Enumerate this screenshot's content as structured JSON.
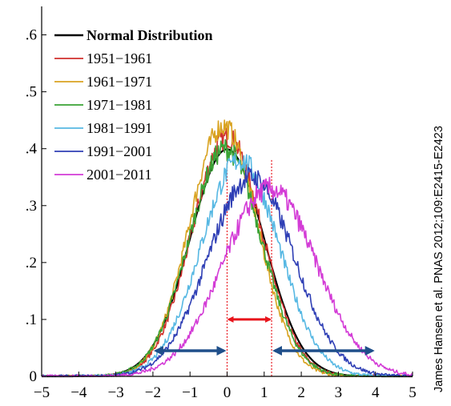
{
  "chart_data": {
    "type": "line",
    "xlim": [
      -5,
      5
    ],
    "ylim": [
      0,
      0.65
    ],
    "x_ticks": [
      {
        "value": -5,
        "label": "−5"
      },
      {
        "value": -4,
        "label": "−4"
      },
      {
        "value": -3,
        "label": "−3"
      },
      {
        "value": -2,
        "label": "−2"
      },
      {
        "value": -1,
        "label": "−1"
      },
      {
        "value": 0,
        "label": "0"
      },
      {
        "value": 1,
        "label": "1"
      },
      {
        "value": 2,
        "label": "2"
      },
      {
        "value": 3,
        "label": "3"
      },
      {
        "value": 4,
        "label": "4"
      },
      {
        "value": 5,
        "label": "5"
      }
    ],
    "y_ticks": [
      {
        "value": 0,
        "label": "0"
      },
      {
        "value": 0.1,
        "label": ".1"
      },
      {
        "value": 0.2,
        "label": ".2"
      },
      {
        "value": 0.3,
        "label": ".3"
      },
      {
        "value": 0.4,
        "label": ".4"
      },
      {
        "value": 0.5,
        "label": ".5"
      },
      {
        "value": 0.6,
        "label": ".6"
      }
    ],
    "grid": false,
    "legend_position": "top-left",
    "series": [
      {
        "name": "Normal Distribution",
        "color": "#000000",
        "mean": 0.0,
        "sd": 1.0,
        "peak": 0.399
      },
      {
        "name": "1951−1961",
        "color": "#d0312d",
        "mean": 0.0,
        "sd": 0.95,
        "peak": 0.42
      },
      {
        "name": "1961−1971",
        "color": "#d9a321",
        "mean": -0.1,
        "sd": 0.92,
        "peak": 0.44
      },
      {
        "name": "1971−1981",
        "color": "#3aa335",
        "mean": -0.05,
        "sd": 0.97,
        "peak": 0.4
      },
      {
        "name": "1981−1991",
        "color": "#57b8e3",
        "mean": 0.35,
        "sd": 1.05,
        "peak": 0.38
      },
      {
        "name": "1991−2001",
        "color": "#2f3fb5",
        "mean": 0.65,
        "sd": 1.15,
        "peak": 0.35
      },
      {
        "name": "2001−2011",
        "color": "#d33bd6",
        "mean": 1.15,
        "sd": 1.25,
        "peak": 0.33
      }
    ],
    "annotations": {
      "vlines": [
        0,
        1.2
      ],
      "red_arrow": [
        0,
        1.2
      ],
      "blue_arrows": [
        [
          -2,
          0
        ],
        [
          1.2,
          4
        ]
      ],
      "arrow_y": 0.045,
      "credit": "James Hansen et al. PNAS 2012;109:E2415-E2423"
    }
  }
}
